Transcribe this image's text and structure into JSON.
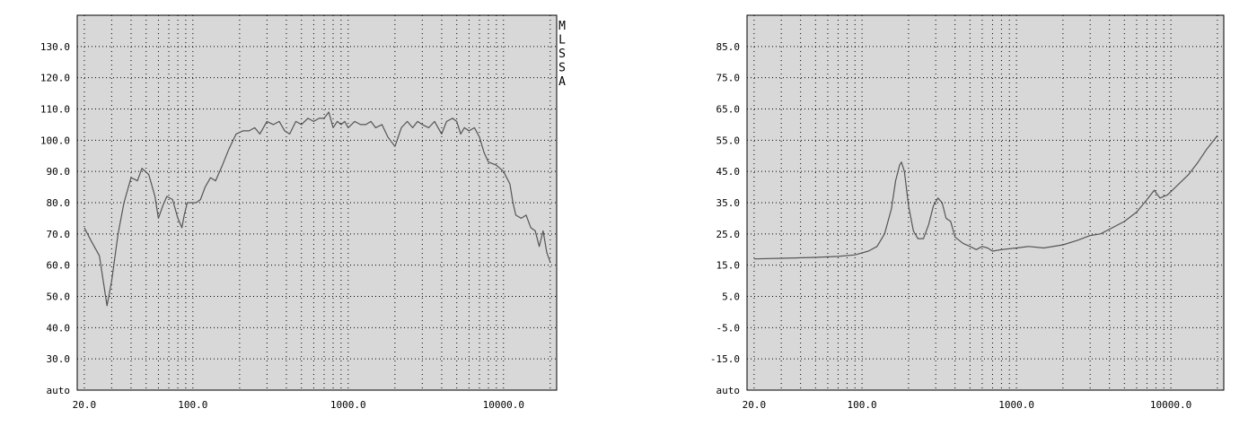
{
  "side_label": [
    "M",
    "L",
    "S",
    "S",
    "A"
  ],
  "chart_data": [
    {
      "type": "line",
      "x_scale": "log",
      "xlim": [
        18,
        22000
      ],
      "ylim": [
        20,
        140
      ],
      "grid": true,
      "plot_bg": "#d8d8d8",
      "line_color": "#555555",
      "x_tick_labels": [
        {
          "value": 20,
          "label": "20.0"
        },
        {
          "value": 100,
          "label": "100.0"
        },
        {
          "value": 1000,
          "label": "1000.0"
        },
        {
          "value": 10000,
          "label": "10000.0"
        }
      ],
      "y_tick_labels": [
        {
          "value": 20,
          "label": "auto"
        },
        {
          "value": 30,
          "label": "30.0"
        },
        {
          "value": 40,
          "label": "40.0"
        },
        {
          "value": 50,
          "label": "50.0"
        },
        {
          "value": 60,
          "label": "60.0"
        },
        {
          "value": 70,
          "label": "70.0"
        },
        {
          "value": 80,
          "label": "80.0"
        },
        {
          "value": 90,
          "label": "90.0"
        },
        {
          "value": 100,
          "label": "100.0"
        },
        {
          "value": 110,
          "label": "110.0"
        },
        {
          "value": 120,
          "label": "120.0"
        },
        {
          "value": 130,
          "label": "130.0"
        }
      ],
      "series": [
        {
          "points": [
            [
              20,
              72
            ],
            [
              22,
              68
            ],
            [
              25,
              63
            ],
            [
              28,
              47
            ],
            [
              30,
              55
            ],
            [
              33,
              70
            ],
            [
              36,
              80
            ],
            [
              40,
              88
            ],
            [
              44,
              87
            ],
            [
              47,
              91
            ],
            [
              52,
              89
            ],
            [
              57,
              82
            ],
            [
              60,
              75
            ],
            [
              64,
              79
            ],
            [
              68,
              82
            ],
            [
              74,
              81
            ],
            [
              80,
              75
            ],
            [
              85,
              72
            ],
            [
              88,
              76
            ],
            [
              92,
              80
            ],
            [
              97,
              80
            ],
            [
              105,
              80
            ],
            [
              112,
              81
            ],
            [
              120,
              85
            ],
            [
              130,
              88
            ],
            [
              140,
              87
            ],
            [
              155,
              92
            ],
            [
              170,
              97
            ],
            [
              190,
              102
            ],
            [
              210,
              103
            ],
            [
              230,
              103
            ],
            [
              250,
              104
            ],
            [
              270,
              102
            ],
            [
              300,
              106
            ],
            [
              330,
              105
            ],
            [
              360,
              106
            ],
            [
              390,
              103
            ],
            [
              420,
              102
            ],
            [
              460,
              106
            ],
            [
              500,
              105
            ],
            [
              550,
              107
            ],
            [
              600,
              106
            ],
            [
              650,
              107
            ],
            [
              700,
              107
            ],
            [
              750,
              109
            ],
            [
              800,
              104
            ],
            [
              850,
              106
            ],
            [
              900,
              105
            ],
            [
              950,
              106
            ],
            [
              1000,
              104
            ],
            [
              1100,
              106
            ],
            [
              1200,
              105
            ],
            [
              1300,
              105
            ],
            [
              1400,
              106
            ],
            [
              1500,
              104
            ],
            [
              1650,
              105
            ],
            [
              1800,
              101
            ],
            [
              2000,
              98
            ],
            [
              2200,
              104
            ],
            [
              2400,
              106
            ],
            [
              2600,
              104
            ],
            [
              2800,
              106
            ],
            [
              3000,
              105
            ],
            [
              3300,
              104
            ],
            [
              3600,
              106
            ],
            [
              4000,
              102
            ],
            [
              4300,
              106
            ],
            [
              4700,
              107
            ],
            [
              5000,
              106
            ],
            [
              5300,
              102
            ],
            [
              5600,
              104
            ],
            [
              6000,
              103
            ],
            [
              6500,
              104
            ],
            [
              7000,
              101
            ],
            [
              7500,
              96
            ],
            [
              8000,
              93
            ],
            [
              9000,
              92
            ],
            [
              10000,
              90
            ],
            [
              11000,
              86
            ],
            [
              11500,
              80
            ],
            [
              12000,
              76
            ],
            [
              13000,
              75
            ],
            [
              14000,
              76
            ],
            [
              15000,
              72
            ],
            [
              16000,
              71
            ],
            [
              17000,
              66
            ],
            [
              18000,
              71
            ],
            [
              19000,
              64
            ],
            [
              20000,
              61
            ]
          ]
        }
      ]
    },
    {
      "type": "line",
      "x_scale": "log",
      "xlim": [
        18,
        22000
      ],
      "ylim": [
        -25,
        95
      ],
      "grid": true,
      "plot_bg": "#d8d8d8",
      "line_color": "#555555",
      "x_tick_labels": [
        {
          "value": 20,
          "label": "20.0"
        },
        {
          "value": 100,
          "label": "100.0"
        },
        {
          "value": 1000,
          "label": "1000.0"
        },
        {
          "value": 10000,
          "label": "10000.0"
        }
      ],
      "y_tick_labels": [
        {
          "value": -25,
          "label": "auto"
        },
        {
          "value": -15,
          "label": "-15.0"
        },
        {
          "value": -5,
          "label": "-5.0"
        },
        {
          "value": 5,
          "label": "5.0"
        },
        {
          "value": 15,
          "label": "15.0"
        },
        {
          "value": 25,
          "label": "25.0"
        },
        {
          "value": 35,
          "label": "35.0"
        },
        {
          "value": 45,
          "label": "45.0"
        },
        {
          "value": 55,
          "label": "55.0"
        },
        {
          "value": 65,
          "label": "65.0"
        },
        {
          "value": 75,
          "label": "75.0"
        },
        {
          "value": 85,
          "label": "85.0"
        }
      ],
      "series": [
        {
          "points": [
            [
              20,
              17
            ],
            [
              30,
              17.2
            ],
            [
              50,
              17.5
            ],
            [
              70,
              17.8
            ],
            [
              90,
              18.3
            ],
            [
              110,
              19.5
            ],
            [
              125,
              21
            ],
            [
              140,
              25
            ],
            [
              155,
              33
            ],
            [
              165,
              42
            ],
            [
              175,
              47
            ],
            [
              180,
              48
            ],
            [
              188,
              45
            ],
            [
              200,
              34
            ],
            [
              215,
              26
            ],
            [
              230,
              23.5
            ],
            [
              250,
              23.5
            ],
            [
              270,
              28
            ],
            [
              290,
              34
            ],
            [
              310,
              36.5
            ],
            [
              330,
              35
            ],
            [
              350,
              30
            ],
            [
              375,
              29
            ],
            [
              400,
              24
            ],
            [
              450,
              22
            ],
            [
              500,
              21
            ],
            [
              550,
              20
            ],
            [
              600,
              21
            ],
            [
              650,
              20.5
            ],
            [
              700,
              19.5
            ],
            [
              800,
              20
            ],
            [
              1000,
              20.5
            ],
            [
              1200,
              21
            ],
            [
              1500,
              20.5
            ],
            [
              2000,
              21.5
            ],
            [
              2500,
              23
            ],
            [
              3000,
              24.5
            ],
            [
              3500,
              25
            ],
            [
              4000,
              26.5
            ],
            [
              5000,
              29
            ],
            [
              6000,
              32
            ],
            [
              7000,
              36
            ],
            [
              7800,
              39
            ],
            [
              8500,
              36.5
            ],
            [
              9500,
              37.5
            ],
            [
              11000,
              40.5
            ],
            [
              13000,
              44
            ],
            [
              15000,
              48
            ],
            [
              17000,
              52
            ],
            [
              19000,
              55
            ],
            [
              20000,
              56.5
            ]
          ]
        }
      ]
    }
  ]
}
